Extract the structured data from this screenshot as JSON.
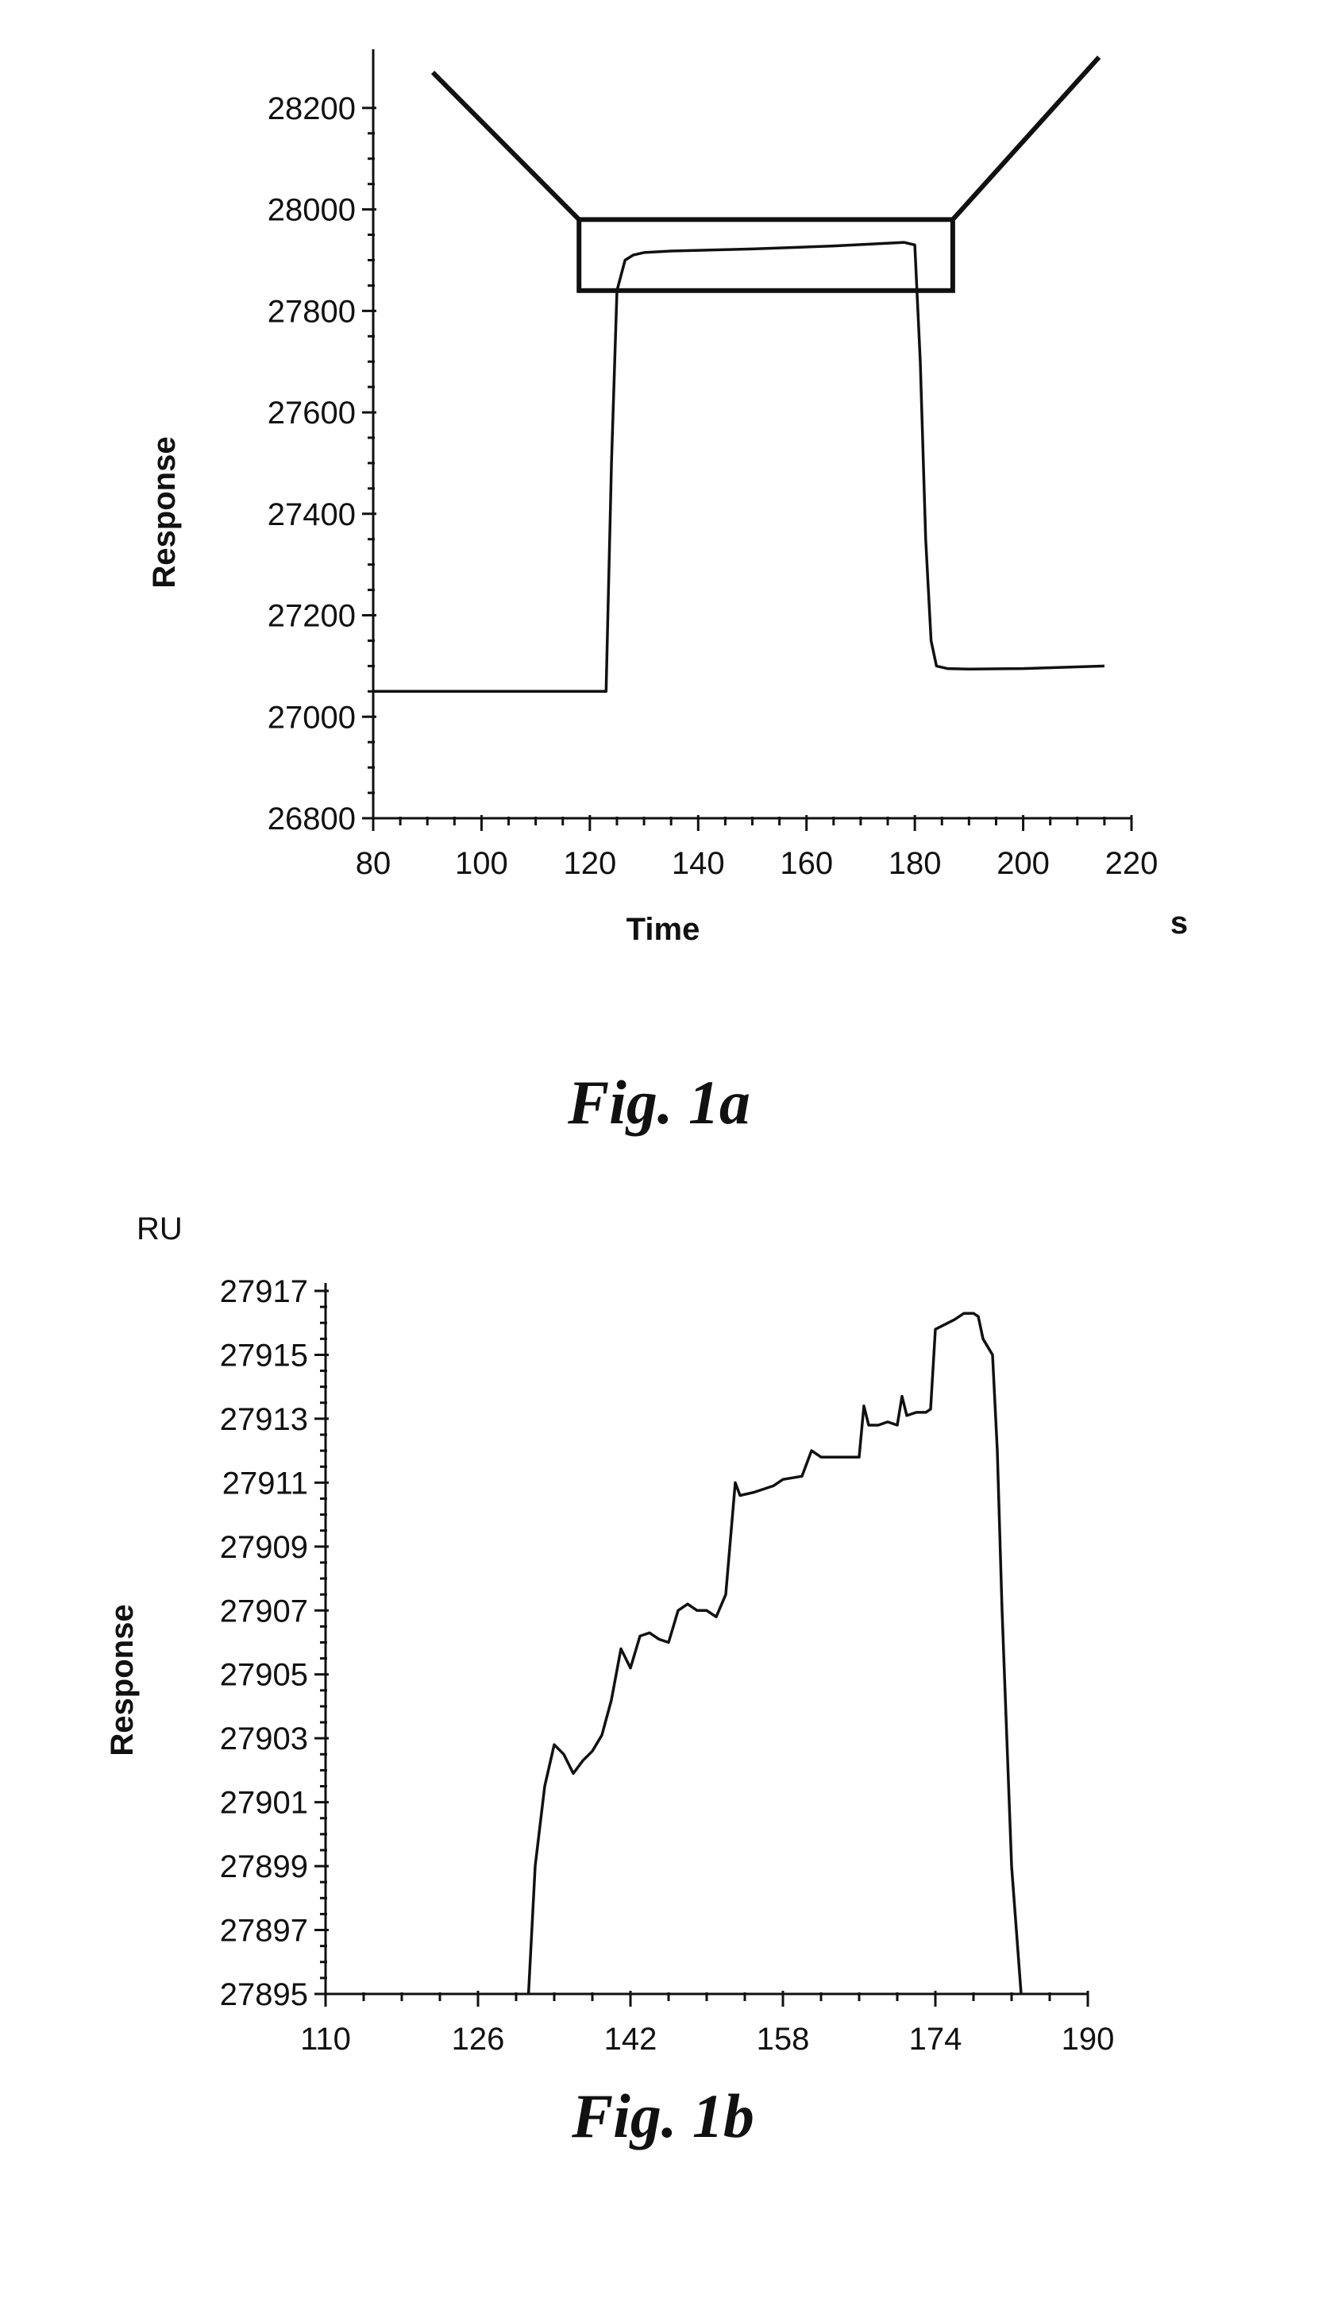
{
  "chart_data": [
    {
      "type": "line",
      "caption": "Fig. 1a",
      "xlabel": "Time",
      "x_unit": "s",
      "ylabel": "Response",
      "xlim": [
        80,
        220
      ],
      "ylim": [
        26800,
        28300
      ],
      "x_ticks": [
        "80",
        "100",
        "120",
        "140",
        "160",
        "180",
        "200",
        "220"
      ],
      "y_ticks": [
        "26800",
        "27000",
        "27200",
        "27400",
        "27600",
        "27800",
        "28000",
        "28200"
      ],
      "grid": false,
      "series": [
        {
          "x": [
            80,
            123,
            124,
            125,
            126.5,
            128,
            130,
            135,
            150,
            165,
            178,
            180,
            181,
            182,
            183,
            184,
            186,
            190,
            200,
            215
          ],
          "y": [
            27050,
            27050,
            27500,
            27840,
            27900,
            27910,
            27915,
            27918,
            27922,
            27928,
            27935,
            27930,
            27700,
            27350,
            27150,
            27100,
            27095,
            27094,
            27095,
            27100
          ]
        }
      ],
      "annotations": {
        "box": {
          "x": [
            118,
            187
          ],
          "y": [
            27840,
            27980
          ]
        },
        "zoom_lines": [
          {
            "from": [
              91,
              28270
            ],
            "to": [
              118,
              27980
            ]
          },
          {
            "from": [
              187,
              27980
            ],
            "to": [
              214,
              28300
            ]
          }
        ]
      }
    },
    {
      "type": "line",
      "caption": "Fig. 1b",
      "unit_label": "RU",
      "ylabel": "Response",
      "xlim": [
        110,
        190
      ],
      "ylim": [
        27895,
        27917
      ],
      "x_ticks": [
        "110",
        "126",
        "142",
        "158",
        "174",
        "190"
      ],
      "y_ticks": [
        "27895",
        "27897",
        "27899",
        "27901",
        "27903",
        "27905",
        "27907",
        "27909",
        "27911",
        "27913",
        "27915",
        "27917"
      ],
      "grid": false,
      "series": [
        {
          "x": [
            131.3,
            132,
            133,
            134,
            135,
            136,
            137,
            138,
            139,
            140,
            141,
            142,
            143,
            144,
            145,
            146,
            147,
            148,
            149,
            150,
            151,
            152,
            153,
            153.5,
            155,
            157,
            158,
            160,
            161,
            162,
            163,
            164,
            165,
            166,
            166.5,
            167,
            168,
            169,
            170,
            170.5,
            171,
            172,
            173,
            173.5,
            174,
            176,
            177,
            178,
            178.5,
            179,
            180,
            180.5,
            181,
            182,
            183
          ],
          "y": [
            27895,
            27899,
            27901.5,
            27902.8,
            27902.5,
            27901.9,
            27902.3,
            27902.6,
            27903.1,
            27904.2,
            27905.8,
            27905.2,
            27906.2,
            27906.3,
            27906.1,
            27906,
            27907,
            27907.2,
            27907,
            27907,
            27906.8,
            27907.5,
            27911,
            27910.6,
            27910.7,
            27910.9,
            27911.1,
            27911.2,
            27912,
            27911.8,
            27911.8,
            27911.8,
            27911.8,
            27911.8,
            27913.4,
            27912.8,
            27912.8,
            27912.9,
            27912.8,
            27913.7,
            27913.1,
            27913.2,
            27913.2,
            27913.3,
            27915.8,
            27916.1,
            27916.3,
            27916.3,
            27916.2,
            27915.5,
            27915,
            27912,
            27907,
            27899,
            27895
          ]
        }
      ]
    }
  ]
}
